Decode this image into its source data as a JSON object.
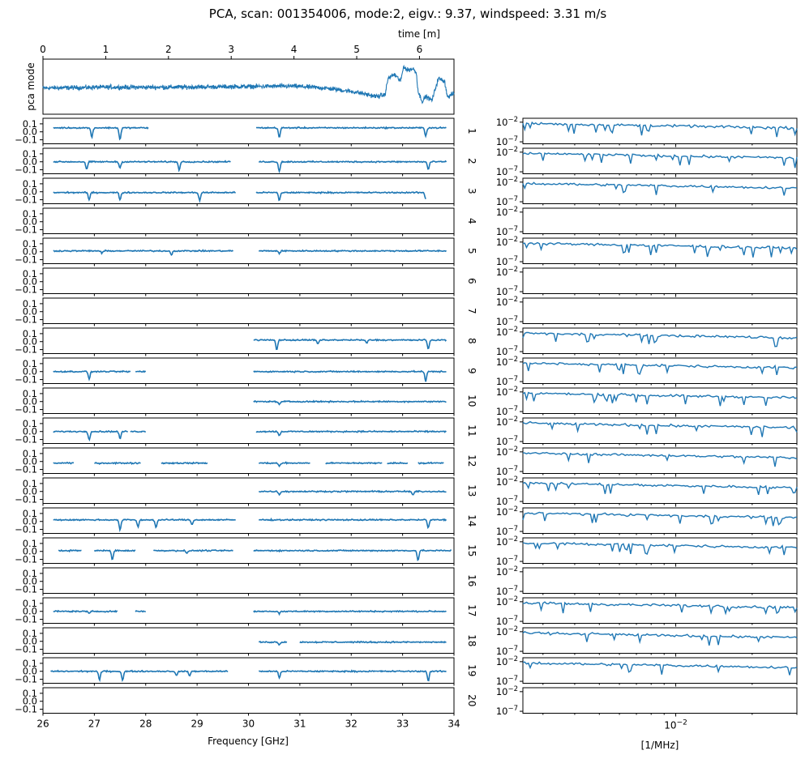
{
  "chart_data": {
    "type": "line",
    "title": "PCA, scan: 001354006, mode:2, eigv.: 9.37, windspeed: 3.31 m/s",
    "colors": {
      "line": "#1f77b4",
      "axes": "#000000",
      "background": "#ffffff"
    },
    "time_panel": {
      "ylabel": "pca mode",
      "xlabel": "time [m]",
      "xlim": [
        0,
        6.55
      ],
      "ylim": [
        -1.0,
        1.0
      ],
      "x_ticks": [
        "0",
        "1",
        "2",
        "3",
        "4",
        "5",
        "6"
      ],
      "x_tick_values": [
        0,
        1,
        2,
        3,
        4,
        5,
        6
      ],
      "keypoints": [
        [
          0,
          -0.05
        ],
        [
          1.0,
          -0.02
        ],
        [
          2.0,
          -0.02
        ],
        [
          3.0,
          0.0
        ],
        [
          4.0,
          0.02
        ],
        [
          4.5,
          -0.05
        ],
        [
          5.0,
          -0.2
        ],
        [
          5.3,
          -0.35
        ],
        [
          5.45,
          -0.3
        ],
        [
          5.5,
          0.3
        ],
        [
          5.6,
          0.45
        ],
        [
          5.7,
          0.2
        ],
        [
          5.75,
          0.75
        ],
        [
          5.8,
          0.6
        ],
        [
          5.9,
          0.65
        ],
        [
          5.95,
          0.5
        ],
        [
          5.98,
          -0.2
        ],
        [
          6.05,
          -0.55
        ],
        [
          6.1,
          -0.35
        ],
        [
          6.2,
          -0.5
        ],
        [
          6.3,
          0.3
        ],
        [
          6.4,
          0.2
        ],
        [
          6.45,
          -0.4
        ],
        [
          6.5,
          -0.3
        ],
        [
          6.55,
          -0.25
        ]
      ],
      "noise_amplitude": 0.12
    },
    "frequency_panels": {
      "xlabel": "Frequency [GHz]",
      "xlim": [
        26,
        34
      ],
      "ylim": [
        -0.15,
        0.17
      ],
      "x_ticks": [
        "26",
        "27",
        "28",
        "29",
        "30",
        "31",
        "32",
        "33",
        "34"
      ],
      "y_ticks": [
        "0.1",
        "0.0",
        "−0.1"
      ],
      "y_tick_values": [
        0.1,
        0.0,
        -0.1
      ]
    },
    "spectrum_panels": {
      "xlabel": "[1/MHz]",
      "x_tick_label": "10−2",
      "y_ticks": [
        "10−2",
        "10−7"
      ],
      "xlim": [
        0.0025,
        0.03
      ],
      "ylim_log10": [
        -7.5,
        -1
      ]
    },
    "channels": [
      {
        "label": "1",
        "segments": [
          [
            26.2,
            28.05
          ],
          [
            30.15,
            33.85
          ]
        ],
        "offset": 0.05,
        "dips": [
          [
            26.95,
            0.12
          ],
          [
            27.5,
            0.15
          ],
          [
            30.6,
            0.12
          ],
          [
            33.45,
            0.1
          ]
        ],
        "spectrum": true
      },
      {
        "label": "2",
        "segments": [
          [
            26.2,
            29.65
          ],
          [
            30.2,
            33.85
          ]
        ],
        "offset": 0.0,
        "dips": [
          [
            26.85,
            0.1
          ],
          [
            27.5,
            0.08
          ],
          [
            28.65,
            0.1
          ],
          [
            30.6,
            0.12
          ],
          [
            33.5,
            0.1
          ]
        ],
        "spectrum": true
      },
      {
        "label": "3",
        "segments": [
          [
            26.2,
            29.75
          ],
          [
            30.15,
            33.45
          ]
        ],
        "offset": -0.01,
        "dips": [
          [
            26.9,
            0.09
          ],
          [
            27.5,
            0.09
          ],
          [
            29.05,
            0.1
          ],
          [
            30.6,
            0.1
          ],
          [
            33.45,
            0.08
          ]
        ],
        "spectrum": true
      },
      {
        "label": "4",
        "segments": [],
        "offset": 0,
        "dips": [],
        "spectrum": false
      },
      {
        "label": "5",
        "segments": [
          [
            26.2,
            29.7
          ],
          [
            30.2,
            33.85
          ]
        ],
        "offset": 0.01,
        "dips": [
          [
            27.15,
            0.03
          ],
          [
            28.5,
            0.05
          ],
          [
            30.6,
            0.03
          ]
        ],
        "spectrum": true
      },
      {
        "label": "6",
        "segments": [],
        "offset": 0,
        "dips": [],
        "spectrum": false
      },
      {
        "label": "7",
        "segments": [],
        "offset": 0,
        "dips": [],
        "spectrum": false
      },
      {
        "label": "8",
        "segments": [
          [
            30.1,
            33.85
          ]
        ],
        "offset": 0.02,
        "dips": [
          [
            30.55,
            0.12
          ],
          [
            31.35,
            0.05
          ],
          [
            32.3,
            0.04
          ],
          [
            33.5,
            0.12
          ]
        ],
        "spectrum": true
      },
      {
        "label": "9",
        "segments": [
          [
            26.2,
            27.7
          ],
          [
            27.8,
            28.0
          ],
          [
            30.1,
            33.85
          ]
        ],
        "offset": 0.0,
        "dips": [
          [
            26.9,
            0.09
          ],
          [
            33.45,
            0.12
          ]
        ],
        "spectrum": true
      },
      {
        "label": "10",
        "segments": [
          [
            30.1,
            33.85
          ]
        ],
        "offset": 0.0,
        "dips": [
          [
            30.6,
            0.04
          ]
        ],
        "spectrum": true
      },
      {
        "label": "11",
        "segments": [
          [
            26.2,
            27.65
          ],
          [
            27.7,
            28.0
          ],
          [
            30.15,
            33.85
          ]
        ],
        "offset": 0.0,
        "dips": [
          [
            26.9,
            0.1
          ],
          [
            27.5,
            0.09
          ],
          [
            30.6,
            0.05
          ]
        ],
        "spectrum": true
      },
      {
        "label": "12",
        "segments": [
          [
            26.2,
            26.6
          ],
          [
            27.0,
            27.9
          ],
          [
            28.3,
            29.2
          ],
          [
            30.2,
            31.2
          ],
          [
            31.5,
            32.6
          ],
          [
            32.7,
            33.1
          ],
          [
            33.3,
            33.8
          ]
        ],
        "offset": -0.02,
        "dips": [
          [
            26.95,
            0.04
          ],
          [
            30.6,
            0.04
          ]
        ],
        "spectrum": true
      },
      {
        "label": "13",
        "segments": [
          [
            30.2,
            33.85
          ]
        ],
        "offset": 0.0,
        "dips": [
          [
            30.6,
            0.04
          ],
          [
            33.2,
            0.05
          ]
        ],
        "spectrum": true
      },
      {
        "label": "14",
        "segments": [
          [
            26.2,
            29.75
          ],
          [
            30.2,
            33.85
          ]
        ],
        "offset": 0.02,
        "dips": [
          [
            27.5,
            0.13
          ],
          [
            27.85,
            0.09
          ],
          [
            28.2,
            0.1
          ],
          [
            28.9,
            0.06
          ],
          [
            33.5,
            0.1
          ]
        ],
        "spectrum": true
      },
      {
        "label": "15",
        "segments": [
          [
            26.3,
            26.75
          ],
          [
            27.0,
            27.8
          ],
          [
            28.15,
            29.7
          ],
          [
            30.1,
            33.95
          ]
        ],
        "offset": 0.01,
        "dips": [
          [
            27.35,
            0.11
          ],
          [
            28.8,
            0.04
          ],
          [
            33.3,
            0.12
          ]
        ],
        "spectrum": true
      },
      {
        "label": "16",
        "segments": [],
        "offset": 0,
        "dips": [],
        "spectrum": false
      },
      {
        "label": "17",
        "segments": [
          [
            26.2,
            27.45
          ],
          [
            27.8,
            28.0
          ],
          [
            30.1,
            33.85
          ]
        ],
        "offset": 0.0,
        "dips": [
          [
            26.9,
            0.03
          ],
          [
            30.6,
            0.03
          ]
        ],
        "spectrum": true
      },
      {
        "label": "18",
        "segments": [
          [
            30.2,
            30.75
          ],
          [
            31.0,
            33.85
          ]
        ],
        "offset": -0.01,
        "dips": [
          [
            30.6,
            0.03
          ]
        ],
        "spectrum": true
      },
      {
        "label": "19",
        "segments": [
          [
            26.15,
            29.6
          ],
          [
            30.2,
            33.85
          ]
        ],
        "offset": 0.0,
        "dips": [
          [
            27.1,
            0.11
          ],
          [
            27.55,
            0.11
          ],
          [
            28.6,
            0.06
          ],
          [
            28.85,
            0.06
          ],
          [
            30.6,
            0.08
          ],
          [
            33.5,
            0.12
          ]
        ],
        "spectrum": true
      },
      {
        "label": "20",
        "segments": [],
        "offset": 0,
        "dips": [],
        "spectrum": false
      }
    ]
  }
}
